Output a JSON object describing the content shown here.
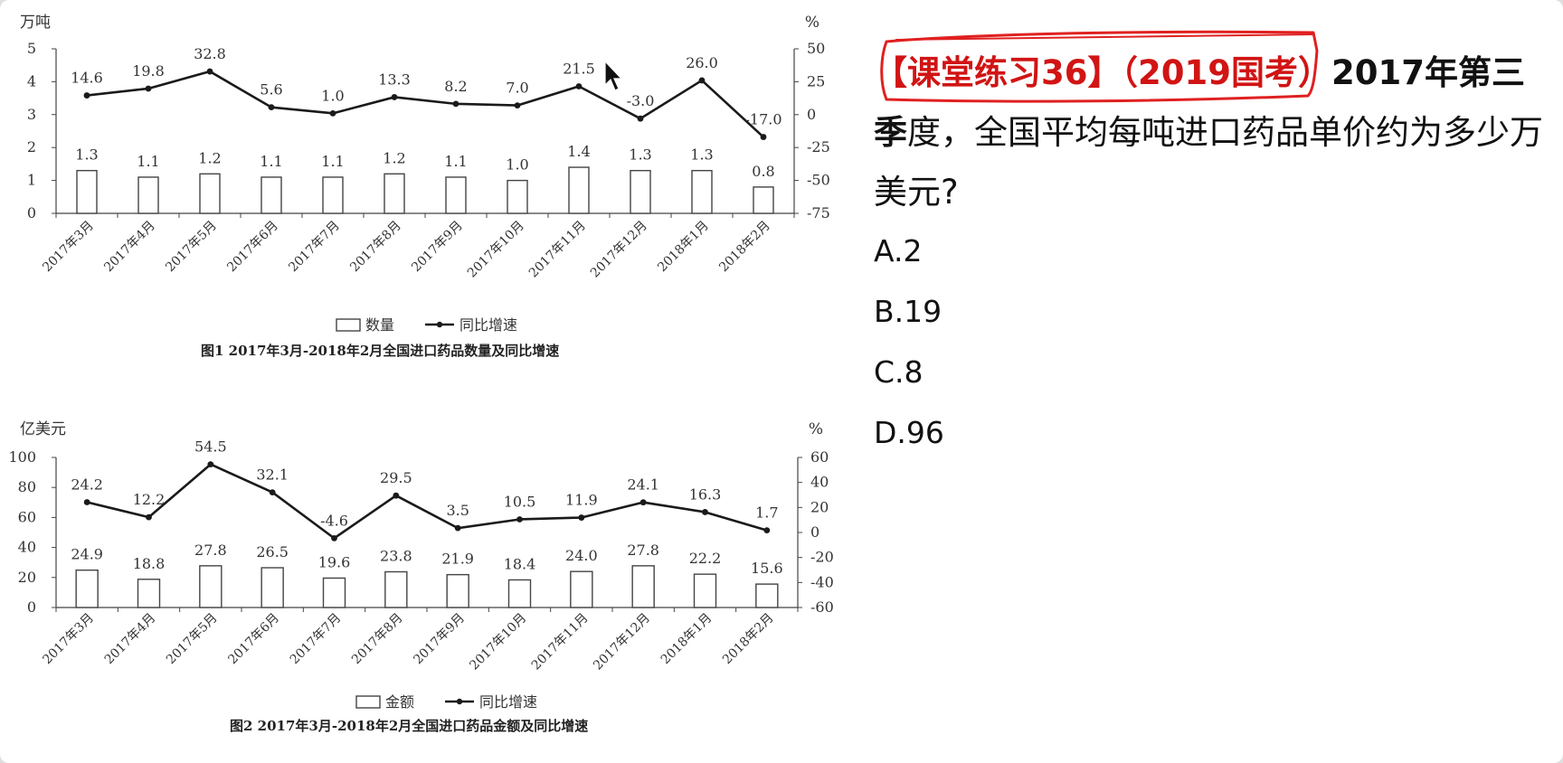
{
  "question": {
    "tag": "【课堂练习36】（2019国考）",
    "text_bold": "2017年第三季",
    "text_rest": "度，全国平均每吨进口药品单价约为多少万美元?",
    "options": [
      "A.2",
      "B.19",
      "C.8",
      "D.96"
    ]
  },
  "chart_data": [
    {
      "type": "bar",
      "title": "图1  2017年3月-2018年2月全国进口药品数量及同比增速",
      "categories": [
        "2017年3月",
        "2017年4月",
        "2017年5月",
        "2017年6月",
        "2017年7月",
        "2017年8月",
        "2017年9月",
        "2017年10月",
        "2017年11月",
        "2017年12月",
        "2018年1月",
        "2018年2月"
      ],
      "series": [
        {
          "name": "数量",
          "type": "bar",
          "axis": "left",
          "values": [
            1.3,
            1.1,
            1.2,
            1.1,
            1.1,
            1.2,
            1.1,
            1.0,
            1.4,
            1.3,
            1.3,
            0.8
          ],
          "labels": [
            "1.3",
            "1.1",
            "1.2",
            "1.1",
            "1.1",
            "1.2",
            "1.1",
            "1.0",
            "1.4",
            "1.3",
            "1.3",
            "0.8"
          ]
        },
        {
          "name": "同比增速",
          "type": "line",
          "axis": "right",
          "values": [
            14.6,
            19.8,
            32.8,
            5.6,
            1.0,
            13.3,
            8.2,
            7.0,
            21.5,
            -3.0,
            26.0,
            -17.0
          ],
          "labels": [
            "14.6",
            "19.8",
            "32.8",
            "5.6",
            "1.0",
            "13.3",
            "8.2",
            "7.0",
            "21.5",
            "-3.0",
            "26.0",
            "-17.0"
          ]
        }
      ],
      "left_axis": {
        "unit": "万吨",
        "min": 0,
        "max": 5,
        "ticks": [
          "0",
          "1",
          "2",
          "3",
          "4",
          "5"
        ]
      },
      "right_axis": {
        "unit": "%",
        "min": -75,
        "max": 50,
        "ticks": [
          "-75",
          "-50",
          "-25",
          "0",
          "25",
          "50"
        ]
      },
      "legend": [
        "数量",
        "同比增速"
      ],
      "legend_position": "bottom"
    },
    {
      "type": "bar",
      "title": "图2  2017年3月-2018年2月全国进口药品金额及同比增速",
      "categories": [
        "2017年3月",
        "2017年4月",
        "2017年5月",
        "2017年6月",
        "2017年7月",
        "2017年8月",
        "2017年9月",
        "2017年10月",
        "2017年11月",
        "2017年12月",
        "2018年1月",
        "2018年2月"
      ],
      "series": [
        {
          "name": "金额",
          "type": "bar",
          "axis": "left",
          "values": [
            24.9,
            18.8,
            27.8,
            26.5,
            19.6,
            23.8,
            21.9,
            18.4,
            24.0,
            27.8,
            22.2,
            15.6
          ],
          "labels": [
            "24.9",
            "18.8",
            "27.8",
            "26.5",
            "19.6",
            "23.8",
            "21.9",
            "18.4",
            "24.0",
            "27.8",
            "22.2",
            "15.6"
          ]
        },
        {
          "name": "同比增速",
          "type": "line",
          "axis": "right",
          "values": [
            24.2,
            12.2,
            54.5,
            32.1,
            -4.6,
            29.5,
            3.5,
            10.5,
            11.9,
            24.1,
            16.3,
            1.7
          ],
          "labels": [
            "24.2",
            "12.2",
            "54.5",
            "32.1",
            "-4.6",
            "29.5",
            "3.5",
            "10.5",
            "11.9",
            "24.1",
            "16.3",
            "1.7"
          ]
        }
      ],
      "left_axis": {
        "unit": "亿美元",
        "min": 0,
        "max": 100,
        "ticks": [
          "0",
          "20",
          "40",
          "60",
          "80",
          "100"
        ]
      },
      "right_axis": {
        "unit": "%",
        "min": -60,
        "max": 60,
        "ticks": [
          "-60",
          "-40",
          "-20",
          "0",
          "20",
          "40",
          "60"
        ]
      },
      "legend": [
        "金额",
        "同比增速"
      ],
      "legend_position": "bottom"
    }
  ],
  "colors": {
    "annotation": "#e02020",
    "line": "#1a1a1a",
    "bar_stroke": "#444444",
    "question_tag": "#d11414"
  },
  "icons": {
    "cursor": "mouse-pointer-icon",
    "annotation": "red-hand-drawn-circle"
  }
}
